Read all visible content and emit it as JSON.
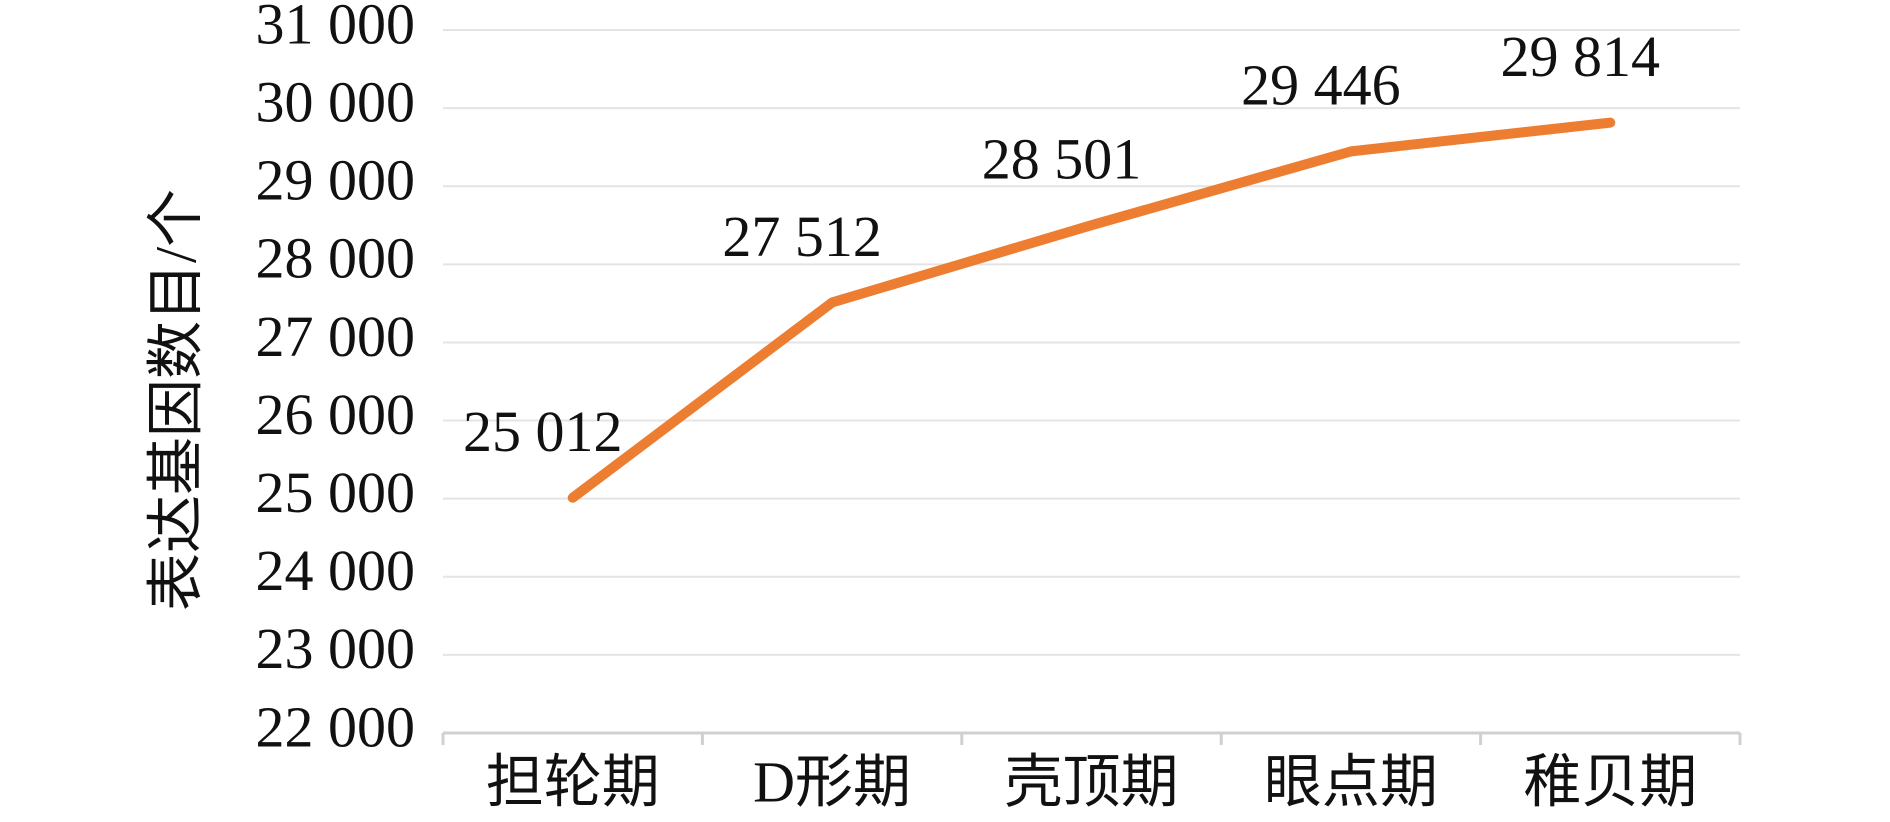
{
  "chart_data": {
    "type": "line",
    "y_label": "表达基因数目/个",
    "categories": [
      "担轮期",
      "D形期",
      "壳顶期",
      "眼点期",
      "稚贝期"
    ],
    "series": [
      {
        "name": "表达基因数目",
        "color": "#ed7d31",
        "values": [
          25012,
          27512,
          28501,
          29446,
          29814
        ],
        "value_labels": [
          "25 012",
          "27 512",
          "28 501",
          "29 446",
          "29 814"
        ]
      }
    ],
    "ylim": [
      22000,
      31000
    ],
    "yticks": [
      {
        "value": 22000,
        "label": "22 000"
      },
      {
        "value": 23000,
        "label": "23 000"
      },
      {
        "value": 24000,
        "label": "24 000"
      },
      {
        "value": 25000,
        "label": "25 000"
      },
      {
        "value": 26000,
        "label": "26 000"
      },
      {
        "value": 27000,
        "label": "27 000"
      },
      {
        "value": 28000,
        "label": "28 000"
      },
      {
        "value": 29000,
        "label": "29 000"
      },
      {
        "value": 30000,
        "label": "30 000"
      },
      {
        "value": 31000,
        "label": "31 000"
      }
    ],
    "grid": true
  }
}
